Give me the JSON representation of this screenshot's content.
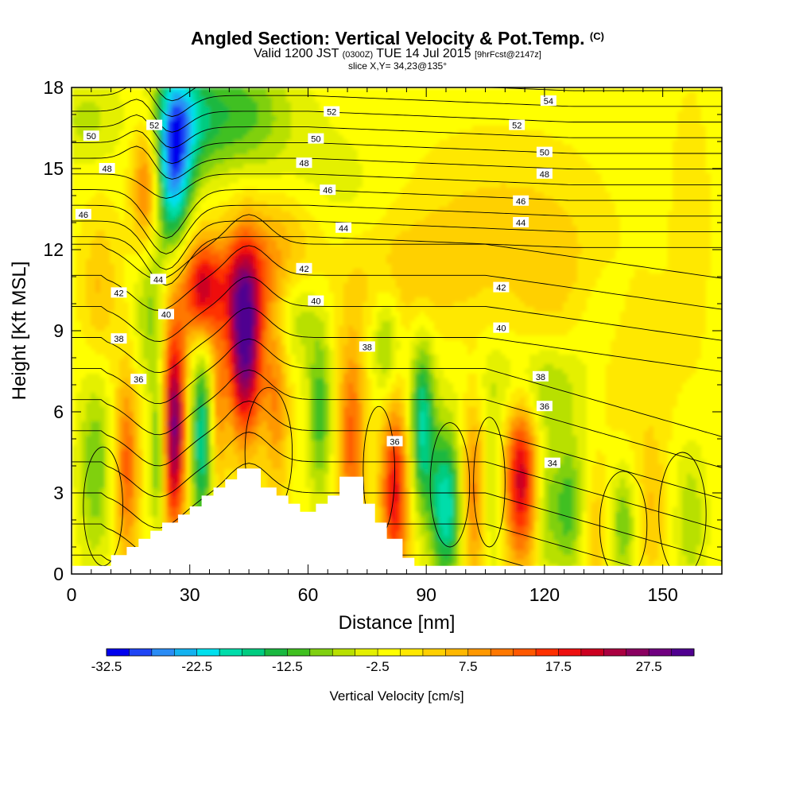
{
  "title": {
    "main": "Angled Section: Vertical Velocity & Pot.Temp.",
    "mark": "(C)",
    "valid_prefix": "Valid 1200 JST",
    "zulu": "(0300Z)",
    "date": "TUE 14 Jul 2015",
    "fcst": "[9hrFcst@2147z]",
    "slice": "slice X,Y= 34,23@135°"
  },
  "chart_data": {
    "type": "heatmap",
    "xlabel": "Distance [nm]",
    "ylabel": "Height [Kft MSL]",
    "xlim": [
      0,
      165
    ],
    "ylim": [
      0,
      18
    ],
    "x_ticks": [
      0,
      30,
      60,
      90,
      120,
      150
    ],
    "y_ticks": [
      0,
      3,
      6,
      9,
      12,
      15,
      18
    ],
    "grid": false,
    "colorbar": {
      "label": "Vertical Velocity [cm/s]",
      "min": -32.5,
      "max": 32.5,
      "step": 2.5,
      "tick_labels": [
        -32.5,
        -22.5,
        -12.5,
        -2.5,
        7.5,
        17.5,
        27.5
      ],
      "colors": [
        "#0000ee",
        "#1f45f5",
        "#2a8cf5",
        "#13b2f0",
        "#00e0ee",
        "#00ddaa",
        "#00cc80",
        "#1ab840",
        "#40c020",
        "#80d010",
        "#b8e000",
        "#e4f000",
        "#ffff00",
        "#ffe800",
        "#ffd000",
        "#ffb800",
        "#ff9800",
        "#ff7800",
        "#ff5800",
        "#ff3000",
        "#ee1010",
        "#cc0020",
        "#aa0040",
        "#8a0060",
        "#700080",
        "#500090"
      ]
    },
    "terrain": [
      [
        0,
        0.3
      ],
      [
        10,
        0.3
      ],
      [
        10,
        0.7
      ],
      [
        14,
        0.7
      ],
      [
        14,
        1.0
      ],
      [
        17,
        1.0
      ],
      [
        17,
        1.3
      ],
      [
        20,
        1.3
      ],
      [
        20,
        1.6
      ],
      [
        23,
        1.6
      ],
      [
        23,
        1.9
      ],
      [
        27,
        1.9
      ],
      [
        27,
        2.2
      ],
      [
        30,
        2.2
      ],
      [
        30,
        2.5
      ],
      [
        33,
        2.5
      ],
      [
        33,
        2.9
      ],
      [
        36,
        2.9
      ],
      [
        36,
        3.2
      ],
      [
        39,
        3.2
      ],
      [
        39,
        3.5
      ],
      [
        42,
        3.5
      ],
      [
        42,
        3.9
      ],
      [
        48,
        3.9
      ],
      [
        48,
        3.2
      ],
      [
        52,
        3.2
      ],
      [
        52,
        2.9
      ],
      [
        55,
        2.9
      ],
      [
        55,
        2.6
      ],
      [
        58,
        2.6
      ],
      [
        58,
        2.3
      ],
      [
        62,
        2.3
      ],
      [
        62,
        2.6
      ],
      [
        65,
        2.6
      ],
      [
        65,
        2.9
      ],
      [
        68,
        2.9
      ],
      [
        68,
        3.6
      ],
      [
        74,
        3.6
      ],
      [
        74,
        2.6
      ],
      [
        77,
        2.6
      ],
      [
        77,
        1.9
      ],
      [
        80,
        1.9
      ],
      [
        80,
        1.3
      ],
      [
        84,
        1.3
      ],
      [
        84,
        0.6
      ],
      [
        87,
        0.6
      ],
      [
        87,
        0.3
      ],
      [
        165,
        0.3
      ]
    ],
    "velocity_cells": [
      {
        "x": 19,
        "z": 14,
        "sx": 2.5,
        "sz": 1.8,
        "v": 17
      },
      {
        "x": 26,
        "z": 14.8,
        "sx": 3,
        "sz": 2.2,
        "v": -21
      },
      {
        "x": 28,
        "z": 16.8,
        "sx": 5,
        "sz": 1.6,
        "v": -13
      },
      {
        "x": 20,
        "z": 11,
        "sx": 3,
        "sz": 2.5,
        "v": -11
      },
      {
        "x": 41,
        "z": 17,
        "sx": 10,
        "sz": 1.6,
        "v": -11
      },
      {
        "x": 44,
        "z": 8.5,
        "sx": 3.2,
        "sz": 2.4,
        "v": 32
      },
      {
        "x": 38,
        "z": 10.8,
        "sx": 11,
        "sz": 1.3,
        "v": 10
      },
      {
        "x": 26,
        "z": 5.5,
        "sx": 2.2,
        "sz": 2.8,
        "v": 29
      },
      {
        "x": 14,
        "z": 4,
        "sx": 2.2,
        "sz": 2.5,
        "v": 14
      },
      {
        "x": 33,
        "z": 5,
        "sx": 2.2,
        "sz": 2.5,
        "v": -17
      },
      {
        "x": 6,
        "z": 4,
        "sx": 3,
        "sz": 2.5,
        "v": -9
      },
      {
        "x": 22,
        "z": 4.5,
        "sx": 1.4,
        "sz": 2.2,
        "v": -12
      },
      {
        "x": 37,
        "z": 6,
        "sx": 1.5,
        "sz": 2.2,
        "v": 10
      },
      {
        "x": 52,
        "z": 6.5,
        "sx": 2.2,
        "sz": 2.5,
        "v": 10
      },
      {
        "x": 63,
        "z": 6,
        "sx": 2.2,
        "sz": 2.2,
        "v": -11
      },
      {
        "x": 71,
        "z": 5,
        "sx": 2.5,
        "sz": 2.8,
        "v": 14
      },
      {
        "x": 82,
        "z": 3,
        "sx": 2.5,
        "sz": 2.5,
        "v": 20
      },
      {
        "x": 89,
        "z": 5.5,
        "sx": 2.2,
        "sz": 2.2,
        "v": -17
      },
      {
        "x": 95,
        "z": 2.5,
        "sx": 2.8,
        "sz": 2,
        "v": -19
      },
      {
        "x": 102,
        "z": 3,
        "sx": 2.2,
        "sz": 2.5,
        "v": 12
      },
      {
        "x": 107,
        "z": 3,
        "sx": 2,
        "sz": 2.2,
        "v": -6
      },
      {
        "x": 114,
        "z": 3.5,
        "sx": 3,
        "sz": 2.2,
        "v": 22
      },
      {
        "x": 120,
        "z": 2.5,
        "sx": 2,
        "sz": 2.2,
        "v": -6
      },
      {
        "x": 126,
        "z": 2.5,
        "sx": 3,
        "sz": 1.8,
        "v": -11
      },
      {
        "x": 133,
        "z": 1.5,
        "sx": 2.5,
        "sz": 1.5,
        "v": 6
      },
      {
        "x": 140,
        "z": 1.8,
        "sx": 2.5,
        "sz": 1.5,
        "v": -9
      },
      {
        "x": 147,
        "z": 2.5,
        "sx": 3,
        "sz": 2,
        "v": 6
      },
      {
        "x": 157,
        "z": 2,
        "sx": 3,
        "sz": 2,
        "v": -6
      },
      {
        "x": 80,
        "z": 8.5,
        "sx": 2.5,
        "sz": 1.5,
        "v": -9
      },
      {
        "x": 85,
        "z": 11,
        "sx": 12,
        "sz": 1.5,
        "v": 5
      },
      {
        "x": 108,
        "z": 13,
        "sx": 15,
        "sz": 2,
        "v": 4
      },
      {
        "x": 124,
        "z": 10.5,
        "sx": 8,
        "sz": 2,
        "v": 4
      },
      {
        "x": 118,
        "z": 7,
        "sx": 10,
        "sz": 1.2,
        "v": -7
      },
      {
        "x": 141,
        "z": 8,
        "sx": 8,
        "sz": 2,
        "v": 4
      },
      {
        "x": 157,
        "z": 13,
        "sx": 3,
        "sz": 3,
        "v": 3
      },
      {
        "x": 134,
        "z": 9.5,
        "sx": 6,
        "sz": 1.5,
        "v": -4
      },
      {
        "x": 4,
        "z": 16.8,
        "sx": 6,
        "sz": 1.2,
        "v": -5
      },
      {
        "x": 7,
        "z": 10.5,
        "sx": 3,
        "sz": 2,
        "v": 6
      },
      {
        "x": 33,
        "z": 10.3,
        "sx": 3,
        "sz": 1.4,
        "v": 15
      },
      {
        "x": 57,
        "z": 9.5,
        "sx": 4,
        "sz": 1.2,
        "v": -6
      },
      {
        "x": 66,
        "z": 14,
        "sx": 10,
        "sz": 2,
        "v": -3
      },
      {
        "x": 53,
        "z": 12.5,
        "sx": 8,
        "sz": 1.3,
        "v": 6
      }
    ],
    "theta_levels": [
      34,
      36,
      38,
      40,
      42,
      44,
      46,
      48,
      50,
      52,
      54
    ],
    "theta_labels": [
      {
        "text": "50",
        "x": 5,
        "z": 16.2
      },
      {
        "text": "52",
        "x": 21,
        "z": 16.6
      },
      {
        "text": "48",
        "x": 9,
        "z": 15
      },
      {
        "text": "46",
        "x": 3,
        "z": 13.3
      },
      {
        "text": "52",
        "x": 66,
        "z": 17.1
      },
      {
        "text": "50",
        "x": 62,
        "z": 16.1
      },
      {
        "text": "48",
        "x": 59,
        "z": 15.2
      },
      {
        "text": "46",
        "x": 65,
        "z": 14.2
      },
      {
        "text": "44",
        "x": 69,
        "z": 12.8
      },
      {
        "text": "42",
        "x": 59,
        "z": 11.3
      },
      {
        "text": "40",
        "x": 62,
        "z": 10.1
      },
      {
        "text": "38",
        "x": 75,
        "z": 8.4
      },
      {
        "text": "54",
        "x": 121,
        "z": 17.5
      },
      {
        "text": "52",
        "x": 113,
        "z": 16.6
      },
      {
        "text": "50",
        "x": 120,
        "z": 15.6
      },
      {
        "text": "48",
        "x": 120,
        "z": 14.8
      },
      {
        "text": "46",
        "x": 114,
        "z": 13.8
      },
      {
        "text": "44",
        "x": 114,
        "z": 13
      },
      {
        "text": "42",
        "x": 109,
        "z": 10.6
      },
      {
        "text": "40",
        "x": 109,
        "z": 9.1
      },
      {
        "text": "38",
        "x": 119,
        "z": 7.3
      },
      {
        "text": "36",
        "x": 120,
        "z": 6.2
      },
      {
        "text": "34",
        "x": 122,
        "z": 4.1
      },
      {
        "text": "44",
        "x": 22,
        "z": 10.9
      },
      {
        "text": "42",
        "x": 12,
        "z": 10.4
      },
      {
        "text": "40",
        "x": 24,
        "z": 9.6
      },
      {
        "text": "38",
        "x": 12,
        "z": 8.7
      },
      {
        "text": "36",
        "x": 17,
        "z": 7.2
      },
      {
        "text": "36",
        "x": 82,
        "z": 4.9
      }
    ]
  }
}
